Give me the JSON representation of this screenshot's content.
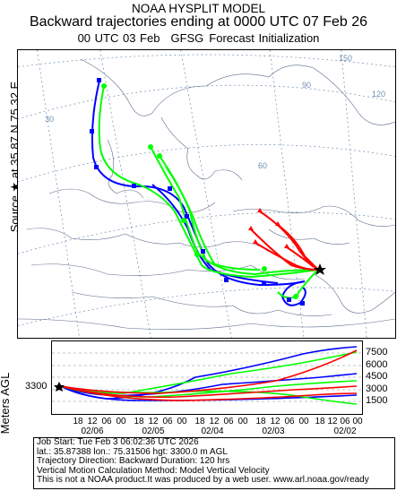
{
  "header": {
    "title": "NOAA HYSPLIT MODEL",
    "subtitle": "Backward trajectories ending at 0000 UTC 07 Feb 26",
    "run_time": "00 UTC 03 Feb",
    "met_data": "GFSG",
    "init": "Forecast Initialization"
  },
  "source": {
    "label": "Source ★ at 35.87 N 75.32 E"
  },
  "map": {
    "grid_labels": [
      "150",
      "120",
      "90",
      "60",
      "30"
    ],
    "colors": {
      "red": "#ff0000",
      "blue": "#0000ff",
      "green": "#00ff00",
      "grid": "#6f8fb0",
      "coast": "#5a6a8a"
    }
  },
  "elevation": {
    "axis_label": "Meters AGL",
    "start_height": "3300",
    "right_labels": [
      "7500",
      "6000",
      "4500",
      "3000",
      "1500"
    ],
    "hour_ticks": [
      "18",
      "12",
      "06",
      "00",
      "18",
      "12",
      "06",
      "00",
      "18",
      "12",
      "06",
      "00",
      "18",
      "12",
      "06",
      "00",
      "18",
      "12",
      "06",
      "00"
    ],
    "date_ticks": [
      "02/06",
      "02/05",
      "02/04",
      "02/03",
      "02/02"
    ]
  },
  "info": {
    "line1": "Job Start: Tue Feb  3 06:02:36 UTC 2026",
    "line2": "lat.: 35.87388   lon.: 75.31506   hgt: 3300.0 m AGL",
    "line3": "Trajectory Direction: Backward        Duration: 120 hrs",
    "line4": "Vertical Motion Calculation Method: Model Vertical Velocity",
    "line5": "This is not a NOAA product.It was produced by a web user. www.arl.noaa.gov/ready"
  }
}
